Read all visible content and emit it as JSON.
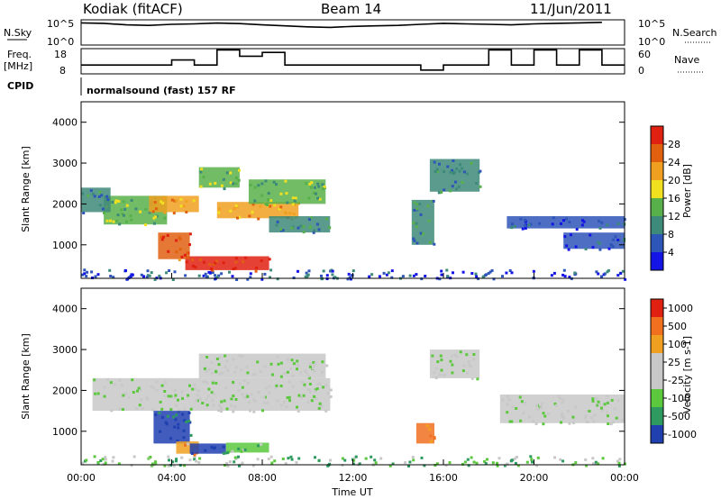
{
  "header": {
    "station": "Kodiak (fitACF)",
    "beam": "Beam 14",
    "date": "11/Jun/2011"
  },
  "mini": {
    "nsky_label": "N.Sky",
    "nsearch_label": "N.Search",
    "freq_label": "Freq.",
    "freq_unit": "[MHz]",
    "nave_label": "Nave",
    "cpid_label": "CPID",
    "cpid_text": "normalsound (fast) 157 RF",
    "left_ticks_sky": [
      "10^5",
      "10^0"
    ],
    "right_ticks_sky": [
      "10^5",
      "10^0"
    ],
    "left_ticks_freq": [
      "18",
      "8"
    ],
    "right_ticks_nave": [
      "60",
      "0"
    ]
  },
  "chart_data": [
    {
      "type": "heatmap",
      "title": "",
      "ylabel": "Slant Range [km]",
      "xlabel": "",
      "ylim": [
        180,
        4500
      ],
      "xlim": [
        0,
        24
      ],
      "y_ticks": [
        "1000",
        "2000",
        "3000",
        "4000"
      ],
      "colorbar": {
        "label": "Power [dB]",
        "ticks": [
          "4",
          "8",
          "12",
          "16",
          "20",
          "24",
          "28"
        ],
        "colors": [
          "#1414e6",
          "#2e55b8",
          "#3e8a7a",
          "#58b04a",
          "#f0e020",
          "#f0a020",
          "#e06010",
          "#e02010"
        ]
      },
      "patches": [
        {
          "t0": 4.6,
          "t1": 8.3,
          "r0": 380,
          "r1": 720,
          "level": 7
        },
        {
          "t0": 3.4,
          "t1": 4.8,
          "r0": 650,
          "r1": 1300,
          "level": 6
        },
        {
          "t0": 1.0,
          "t1": 3.8,
          "r0": 1500,
          "r1": 2200,
          "level": 3
        },
        {
          "t0": 3.0,
          "t1": 5.2,
          "r0": 1800,
          "r1": 2200,
          "level": 5
        },
        {
          "t0": 6.0,
          "t1": 9.6,
          "r0": 1650,
          "r1": 2050,
          "level": 5
        },
        {
          "t0": 5.2,
          "t1": 7.0,
          "r0": 2400,
          "r1": 2900,
          "level": 3
        },
        {
          "t0": 7.4,
          "t1": 10.8,
          "r0": 2000,
          "r1": 2600,
          "level": 3
        },
        {
          "t0": 8.3,
          "t1": 11.0,
          "r0": 1300,
          "r1": 1700,
          "level": 2
        },
        {
          "t0": 0.0,
          "t1": 1.3,
          "r0": 1800,
          "r1": 2400,
          "level": 2
        },
        {
          "t0": 14.6,
          "t1": 15.6,
          "r0": 1000,
          "r1": 2100,
          "level": 2
        },
        {
          "t0": 15.4,
          "t1": 17.6,
          "r0": 2300,
          "r1": 3100,
          "level": 2
        },
        {
          "t0": 18.8,
          "t1": 24.0,
          "r0": 1400,
          "r1": 1700,
          "level": 1
        },
        {
          "t0": 21.3,
          "t1": 24.0,
          "r0": 900,
          "r1": 1300,
          "level": 1
        }
      ],
      "ground_band": {
        "r0": 180,
        "r1": 420,
        "level": 1
      }
    },
    {
      "type": "heatmap",
      "title": "",
      "ylabel": "Slant Range [km]",
      "xlabel": "Time UT",
      "ylim": [
        180,
        4500
      ],
      "xlim": [
        0,
        24
      ],
      "y_ticks": [
        "1000",
        "2000",
        "3000",
        "4000"
      ],
      "x_ticks": [
        "00:00",
        "04:00",
        "08:00",
        "12:00",
        "16:00",
        "20:00",
        "00:00"
      ],
      "colorbar": {
        "label": "Velocity [m s-1]",
        "ticks": [
          "1000",
          "500",
          "100",
          "25",
          "-25",
          "-100",
          "-500",
          "-1000"
        ],
        "colors": [
          "#2040b0",
          "#2e9a60",
          "#5bc83e",
          "#c8c8c8",
          "#c8c8c8",
          "#f0a020",
          "#f07020",
          "#e02010"
        ]
      },
      "patches": [
        {
          "t0": 0.5,
          "t1": 11.0,
          "r0": 1500,
          "r1": 2300,
          "level": 3
        },
        {
          "t0": 5.2,
          "t1": 10.8,
          "r0": 2300,
          "r1": 2900,
          "level": 3
        },
        {
          "t0": 18.5,
          "t1": 24.0,
          "r0": 1200,
          "r1": 1900,
          "level": 3
        },
        {
          "t0": 3.2,
          "t1": 4.8,
          "r0": 700,
          "r1": 1500,
          "level": 0
        },
        {
          "t0": 4.2,
          "t1": 5.2,
          "r0": 450,
          "r1": 750,
          "level": 5
        },
        {
          "t0": 4.8,
          "t1": 6.4,
          "r0": 450,
          "r1": 700,
          "level": 0
        },
        {
          "t0": 6.4,
          "t1": 8.3,
          "r0": 480,
          "r1": 720,
          "level": 2
        },
        {
          "t0": 14.8,
          "t1": 15.6,
          "r0": 700,
          "r1": 1200,
          "level": 6
        },
        {
          "t0": 15.4,
          "t1": 17.6,
          "r0": 2300,
          "r1": 3000,
          "level": 3
        }
      ],
      "ground_band": {
        "r0": 180,
        "r1": 420,
        "level": 2
      }
    }
  ],
  "series_top": {
    "nsky": [
      0.88,
      0.86,
      0.8,
      0.78,
      0.82,
      0.84,
      0.87,
      0.85,
      0.8,
      0.76,
      0.72,
      0.7,
      0.74,
      0.76,
      0.78,
      0.82,
      0.86,
      0.84,
      0.82,
      0.8,
      0.84,
      0.86,
      0.88,
      0.9
    ],
    "freq": [
      0.35,
      0.35,
      0.35,
      0.35,
      0.55,
      0.35,
      0.95,
      0.7,
      0.85,
      0.35,
      0.35,
      0.35,
      0.35,
      0.35,
      0.35,
      0.15,
      0.35,
      0.35,
      0.95,
      0.35,
      0.95,
      0.35,
      0.95,
      0.35
    ]
  }
}
